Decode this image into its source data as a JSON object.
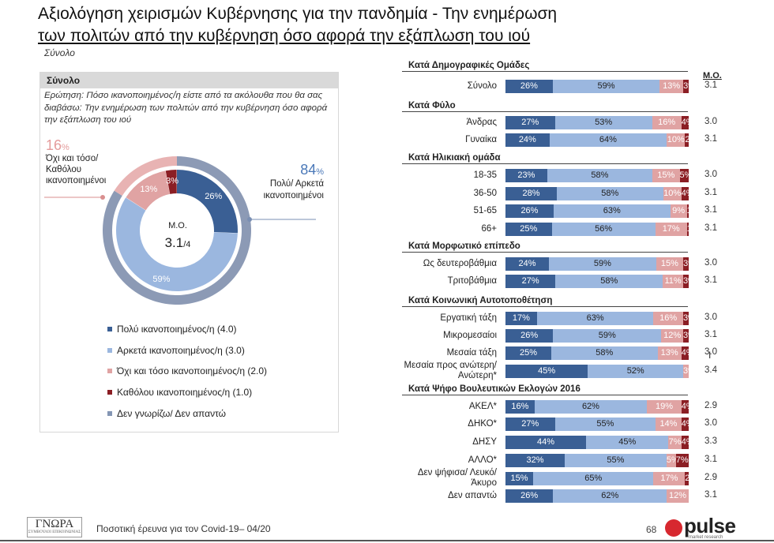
{
  "title_line1": "Αξιολόγηση χειρισμών Κυβέρνησης για την πανδημία - Την ενημέρωση",
  "title_line2": "των πολιτών από την κυβέρνηση όσο αφορά την εξάπλωση του ιού",
  "subtitle": "Σύνολο",
  "panel": {
    "header": "Σύνολο",
    "question": "Ερώτηση: Πόσο ικανοποιημένος/η είστε από τα ακόλουθα που θα σας διαβάσω: Την ενημέρωση των πολιτών από την κυβέρνηση όσο αφορά την εξάπλωση του ιού",
    "neg_pct": "16",
    "neg_label": "Όχι και τόσο/ Καθόλου ικανοποιημένοι",
    "pos_pct": "84",
    "pos_label": "Πολύ/ Αρκετά ικανοποιημένοι",
    "pct_sign": "%",
    "center_label": "Μ.Ο.",
    "center_value": "3.1",
    "center_scale": "/4"
  },
  "colors": {
    "very": "#3a5f94",
    "quite": "#9bb7df",
    "notvery": "#e0a3a3",
    "notatall": "#8b1e24",
    "dk": "#8496b4",
    "outer": "#8c9ab5"
  },
  "legend": [
    {
      "label": "Πολύ ικανοποιημένος/η (4.0)",
      "color": "#3a5f94"
    },
    {
      "label": "Αρκετά ικανοποιημένος/η (3.0)",
      "color": "#9bb7df"
    },
    {
      "label": "Όχι και τόσο ικανοποιημένος/η (2.0)",
      "color": "#e0a3a3"
    },
    {
      "label": "Καθόλου ικανοποιημένος/η (1.0)",
      "color": "#8b1e24"
    },
    {
      "label": "Δεν γνωρίζω/ Δεν απαντώ",
      "color": "#8496b4"
    }
  ],
  "mo_header": "Μ.Ο.",
  "footer": {
    "logo": "ΓΝΩΡΑ",
    "logo_sub": "ΣΥΜΒΟΥΛΟΙ ΕΠΙΚΟΙΝΩΝΙΑΣ",
    "text": "Ποσοτική έρευνα για τον Covid-19– 04/20",
    "page": "68",
    "brand": "pulse",
    "brand_sub": "market research"
  },
  "chart_data": [
    {
      "type": "pie",
      "title": "Σύνολο",
      "categories": [
        "Πολύ ικανοποιημένος/η (4.0)",
        "Αρκετά ικανοποιημένος/η (3.0)",
        "Όχι και τόσο ικανοποιημένος/η (2.0)",
        "Καθόλου ικανοποιημένος/η (1.0)"
      ],
      "values": [
        26,
        59,
        13,
        3
      ],
      "outer_ring": {
        "positive": 84,
        "negative": 16
      }
    },
    {
      "type": "bar",
      "orientation": "horizontal-stacked",
      "series_names": [
        "Πολύ ικανοποιημένος/η (4.0)",
        "Αρκετά ικανοποιημένος/η (3.0)",
        "Όχι και τόσο ικανοποιημένος/η (2.0)",
        "Καθόλου ικανοποιημένος/η (1.0)"
      ],
      "groups": [
        {
          "name": "Κατά Δημογραφικές Ομάδες",
          "rows": [
            {
              "label": "Σύνολο",
              "values": [
                26,
                59,
                13,
                3
              ],
              "mo": "3.1"
            }
          ]
        },
        {
          "name": "Κατά Φύλο",
          "rows": [
            {
              "label": "Άνδρας",
              "values": [
                27,
                53,
                16,
                4
              ],
              "mo": "3.0"
            },
            {
              "label": "Γυναίκα",
              "values": [
                24,
                64,
                10,
                2
              ],
              "mo": "3.1"
            }
          ]
        },
        {
          "name": "Κατά Ηλικιακή ομάδα",
          "rows": [
            {
              "label": "18-35",
              "values": [
                23,
                58,
                15,
                5
              ],
              "mo": "3.0"
            },
            {
              "label": "36-50",
              "values": [
                28,
                58,
                10,
                4
              ],
              "mo": "3.1"
            },
            {
              "label": "51-65",
              "values": [
                26,
                63,
                9,
                1
              ],
              "mo": "3.1"
            },
            {
              "label": "66+",
              "values": [
                25,
                56,
                17,
                1
              ],
              "mo": "3.1"
            }
          ]
        },
        {
          "name": "Κατά Μορφωτικό επίπεδο",
          "rows": [
            {
              "label": "Ως δευτεροβάθμια",
              "values": [
                24,
                59,
                15,
                3
              ],
              "mo": "3.0"
            },
            {
              "label": "Τριτοβάθμια",
              "values": [
                27,
                58,
                11,
                3
              ],
              "mo": "3.1"
            }
          ]
        },
        {
          "name": "Κατά Κοινωνική Αυτοτοποθέτηση",
          "rows": [
            {
              "label": "Εργατική τάξη",
              "values": [
                17,
                63,
                16,
                3
              ],
              "mo": "3.0"
            },
            {
              "label": "Μικρομεσαίοι",
              "values": [
                26,
                59,
                12,
                3
              ],
              "mo": "3.1"
            },
            {
              "label": "Μεσαία τάξη",
              "values": [
                25,
                58,
                13,
                4
              ],
              "mo": "3.0"
            },
            {
              "label": "Μεσαία προς ανώτερη/ Ανώτερη*",
              "values": [
                45,
                52,
                3,
                0
              ],
              "mo": "3.4"
            }
          ]
        },
        {
          "name": "Κατά Ψήφο Βουλευτικών Εκλογών 2016",
          "rows": [
            {
              "label": "ΑΚΕΛ*",
              "values": [
                16,
                62,
                19,
                4
              ],
              "mo": "2.9"
            },
            {
              "label": "ΔΗΚΟ*",
              "values": [
                27,
                55,
                14,
                4
              ],
              "mo": "3.0"
            },
            {
              "label": "ΔΗΣΥ",
              "values": [
                44,
                45,
                7,
                4
              ],
              "mo": "3.3"
            },
            {
              "label": "ΑΛΛΟ*",
              "values": [
                32,
                55,
                5,
                7
              ],
              "mo": "3.1"
            },
            {
              "label": "Δεν ψήφισα/ Λευκό/ Άκυρο",
              "values": [
                15,
                65,
                17,
                2
              ],
              "mo": "2.9"
            },
            {
              "label": "Δεν απαντώ",
              "values": [
                26,
                62,
                12,
                0
              ],
              "mo": "3.1"
            }
          ]
        }
      ]
    }
  ]
}
